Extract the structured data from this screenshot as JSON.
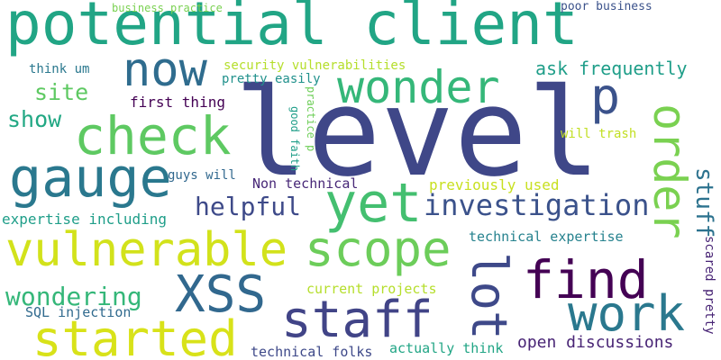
{
  "words": [
    {
      "key": "potential_client",
      "text": "potential client",
      "color": "#21a585"
    },
    {
      "key": "level",
      "text": "level",
      "color": "#3f4788"
    },
    {
      "key": "now",
      "text": "now",
      "color": "#2f6c8e"
    },
    {
      "key": "wonder",
      "text": "wonder",
      "color": "#35b779"
    },
    {
      "key": "p",
      "text": "p",
      "color": "#3b528b"
    },
    {
      "key": "check",
      "text": "check",
      "color": "#5ec962"
    },
    {
      "key": "gauge",
      "text": "gauge",
      "color": "#2a788e"
    },
    {
      "key": "yet",
      "text": "yet",
      "color": "#44bf70"
    },
    {
      "key": "order",
      "text": "order",
      "color": "#7ad151"
    },
    {
      "key": "stuff",
      "text": "stuff",
      "color": "#2c728e"
    },
    {
      "key": "investigation",
      "text": "investigation",
      "color": "#3b528b"
    },
    {
      "key": "vulnerable",
      "text": "vulnerable",
      "color": "#d2e21b"
    },
    {
      "key": "scope",
      "text": "scope",
      "color": "#6ccd5a"
    },
    {
      "key": "find",
      "text": "find",
      "color": "#440154"
    },
    {
      "key": "lot",
      "text": "lot",
      "color": "#3e4989"
    },
    {
      "key": "xss",
      "text": "XSS",
      "color": "#31688e"
    },
    {
      "key": "work",
      "text": "work",
      "color": "#2a788e"
    },
    {
      "key": "staff",
      "text": "staff",
      "color": "#414487"
    },
    {
      "key": "started",
      "text": "started",
      "color": "#d8e219"
    },
    {
      "key": "wondering",
      "text": "wondering",
      "color": "#35b779"
    },
    {
      "key": "helpful",
      "text": "helpful",
      "color": "#3e4a89"
    },
    {
      "key": "show",
      "text": "show",
      "color": "#22a884"
    },
    {
      "key": "site",
      "text": "site",
      "color": "#5ec962"
    },
    {
      "key": "ask_frequently",
      "text": "ask frequently",
      "color": "#1f9e89"
    },
    {
      "key": "security_vulnerabilities",
      "text": "security vulnerabilities",
      "color": "#b5de2b"
    },
    {
      "key": "pretty_easily",
      "text": "pretty easily",
      "color": "#21918c"
    },
    {
      "key": "first_thing",
      "text": "first thing",
      "color": "#440154"
    },
    {
      "key": "think_um",
      "text": "think um",
      "color": "#2a788e"
    },
    {
      "key": "business_practice",
      "text": "business practice",
      "color": "#7ad151"
    },
    {
      "key": "poor_business",
      "text": "poor business",
      "color": "#3b528b"
    },
    {
      "key": "good_faith",
      "text": "good faith",
      "color": "#1f9e89"
    },
    {
      "key": "practice_p",
      "text": "practice p",
      "color": "#6ece58"
    },
    {
      "key": "will_trash",
      "text": "will trash",
      "color": "#c2df23"
    },
    {
      "key": "guys_will",
      "text": "guys will",
      "color": "#31688e"
    },
    {
      "key": "non_technical",
      "text": "Non technical",
      "color": "#482878"
    },
    {
      "key": "previously_used",
      "text": "previously used",
      "color": "#c8e020"
    },
    {
      "key": "expertise_including",
      "text": "expertise including",
      "color": "#1f9e89"
    },
    {
      "key": "technical_expertise",
      "text": "technical expertise",
      "color": "#26828e"
    },
    {
      "key": "scared_pretty",
      "text": "scared pretty",
      "color": "#482475"
    },
    {
      "key": "current_projects",
      "text": "current projects",
      "color": "#b5de2b"
    },
    {
      "key": "sql_injection",
      "text": "SQL injection",
      "color": "#306a8e"
    },
    {
      "key": "technical_folks",
      "text": "technical folks",
      "color": "#3e4989"
    },
    {
      "key": "actually_think",
      "text": "actually think",
      "color": "#21a585"
    },
    {
      "key": "open_discussions",
      "text": "open discussions",
      "color": "#482475"
    }
  ]
}
